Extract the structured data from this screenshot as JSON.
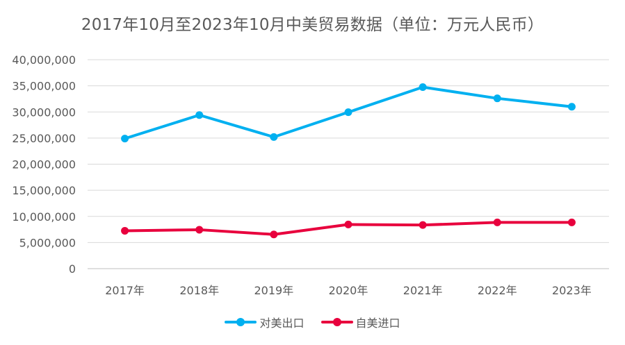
{
  "chart_data": {
    "type": "line",
    "title": "2017年10月至2023年10月中美贸易数据（单位：万元人民币）",
    "xlabel": "",
    "ylabel": "",
    "categories": [
      "2017年",
      "2018年",
      "2019年",
      "2020年",
      "2021年",
      "2022年",
      "2023年"
    ],
    "ylim": [
      0,
      40000000
    ],
    "yticks": [
      0,
      5000000,
      10000000,
      15000000,
      20000000,
      25000000,
      30000000,
      35000000,
      40000000
    ],
    "ytick_labels": [
      "0",
      "5,000,000",
      "10,000,000",
      "15,000,000",
      "20,000,000",
      "25,000,000",
      "30,000,000",
      "35,000,000",
      "40,000,000"
    ],
    "grid": true,
    "legend_position": "bottom",
    "series": [
      {
        "name": "对美出口",
        "color": "#00B0F0",
        "values": [
          24900000,
          29400000,
          25200000,
          29950000,
          34750000,
          32600000,
          31000000
        ]
      },
      {
        "name": "自美进口",
        "color": "#E8003D",
        "values": [
          7250000,
          7450000,
          6550000,
          8450000,
          8350000,
          8850000,
          8850000
        ]
      }
    ]
  }
}
